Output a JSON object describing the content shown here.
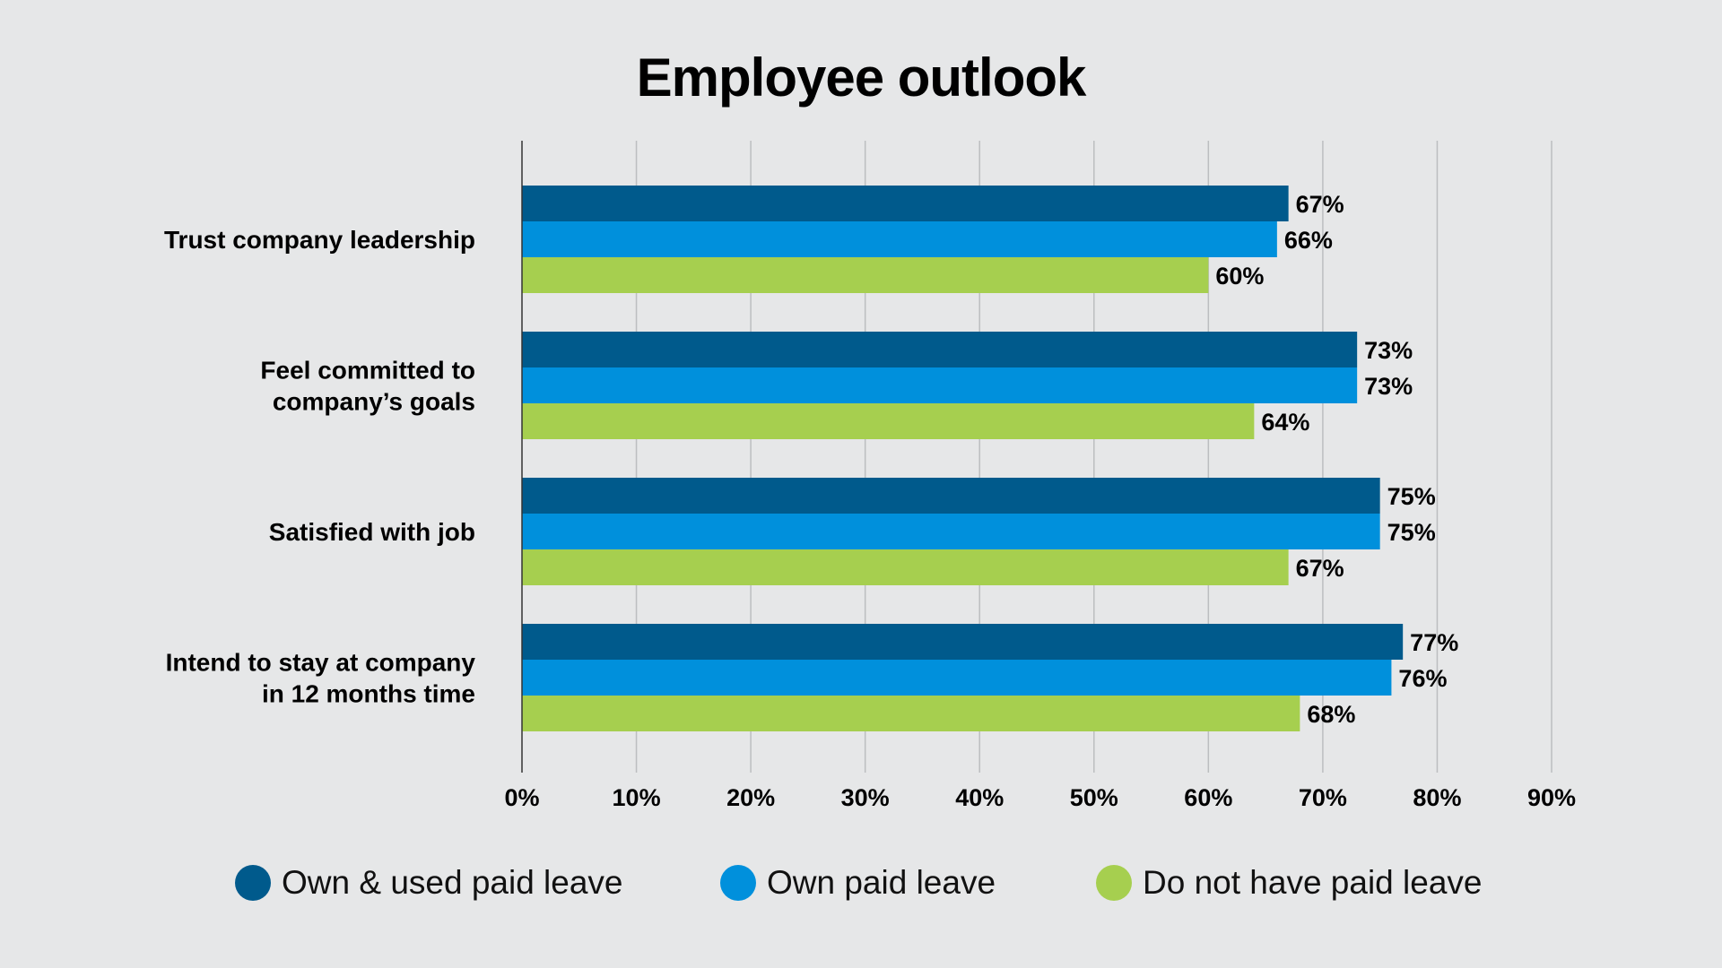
{
  "chart_data": {
    "type": "bar",
    "orientation": "horizontal",
    "title": "Employee outlook",
    "xlabel": "",
    "ylabel": "",
    "xlim": [
      0,
      90
    ],
    "x_ticks": [
      0,
      10,
      20,
      30,
      40,
      50,
      60,
      70,
      80,
      90
    ],
    "x_tick_labels": [
      "0%",
      "10%",
      "20%",
      "30%",
      "40%",
      "50%",
      "60%",
      "70%",
      "80%",
      "90%"
    ],
    "value_suffix": "%",
    "grid": "vertical",
    "legend_position": "bottom",
    "categories": [
      [
        "Trust company leadership"
      ],
      [
        "Feel committed to",
        "company’s goals"
      ],
      [
        "Satisfied with job"
      ],
      [
        "Intend to stay at company",
        "in 12 months time"
      ]
    ],
    "series": [
      {
        "name": "Own & used paid leave",
        "color": "#005a8c",
        "values": [
          67,
          73,
          75,
          77
        ]
      },
      {
        "name": "Own paid leave",
        "color": "#0090dc",
        "values": [
          66,
          73,
          75,
          76
        ]
      },
      {
        "name": "Do not have paid leave",
        "color": "#a6cf4f",
        "values": [
          60,
          64,
          67,
          68
        ]
      }
    ]
  }
}
